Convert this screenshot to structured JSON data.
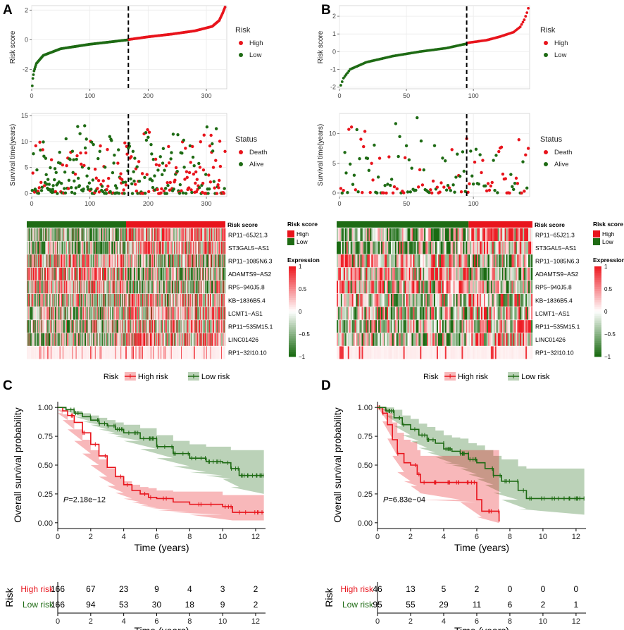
{
  "figure": {
    "panel_letters": [
      "A",
      "B",
      "C",
      "D"
    ],
    "colors": {
      "high": "#e8141c",
      "low": "#1e6b14",
      "white": "#ffffff",
      "grid": "#ebebeb"
    }
  },
  "chart_data": [
    {
      "id": "A_risk",
      "type": "scatter",
      "panel": "A",
      "ylabel": "Risk score",
      "xlabel": "",
      "xlim": [
        0,
        335
      ],
      "ylim": [
        -3.3,
        2.3
      ],
      "xticks": [
        "0",
        "100",
        "200",
        "300"
      ],
      "xtick_values": [
        0,
        100,
        200,
        300
      ],
      "yticks": [
        "-2",
        "0",
        "2"
      ],
      "ytick_values": [
        -2,
        0,
        2
      ],
      "cutoff_x": 166,
      "legend": {
        "title": "Risk",
        "entries": [
          "High",
          "Low"
        ]
      },
      "n_low": 166,
      "n_high": 166,
      "curve_low": [
        [
          1,
          -3.1
        ],
        [
          2,
          -2.6
        ],
        [
          4,
          -2.1
        ],
        [
          8,
          -1.6
        ],
        [
          20,
          -1.05
        ],
        [
          50,
          -0.6
        ],
        [
          100,
          -0.3
        ],
        [
          140,
          -0.12
        ],
        [
          166,
          0.0
        ]
      ],
      "curve_high": [
        [
          167,
          0.02
        ],
        [
          200,
          0.2
        ],
        [
          240,
          0.38
        ],
        [
          280,
          0.6
        ],
        [
          310,
          0.9
        ],
        [
          322,
          1.3
        ],
        [
          328,
          1.8
        ],
        [
          332,
          2.2
        ]
      ]
    },
    {
      "id": "B_risk",
      "type": "scatter",
      "panel": "B",
      "ylabel": "Risk score",
      "xlabel": "",
      "xlim": [
        0,
        142
      ],
      "ylim": [
        -2.1,
        2.6
      ],
      "xticks": [
        "0",
        "50",
        "100"
      ],
      "xtick_values": [
        0,
        50,
        100
      ],
      "yticks": [
        "-2",
        "-1",
        "0",
        "1",
        "2"
      ],
      "ytick_values": [
        -2,
        -1,
        0,
        1,
        2
      ],
      "cutoff_x": 95,
      "legend": {
        "title": "Risk",
        "entries": [
          "High",
          "Low"
        ]
      },
      "n_low": 95,
      "n_high": 46,
      "curve_low": [
        [
          1,
          -1.9
        ],
        [
          3,
          -1.5
        ],
        [
          8,
          -1.0
        ],
        [
          20,
          -0.6
        ],
        [
          40,
          -0.25
        ],
        [
          60,
          0.0
        ],
        [
          80,
          0.2
        ],
        [
          95,
          0.45
        ]
      ],
      "curve_high": [
        [
          96,
          0.5
        ],
        [
          110,
          0.65
        ],
        [
          120,
          0.85
        ],
        [
          130,
          1.1
        ],
        [
          135,
          1.4
        ],
        [
          138,
          1.8
        ],
        [
          140,
          2.2
        ],
        [
          141,
          2.45
        ]
      ]
    },
    {
      "id": "A_status",
      "type": "scatter",
      "panel": "A",
      "ylabel": "Survival time(years)",
      "xlim": [
        0,
        335
      ],
      "ylim": [
        -0.6,
        15.4
      ],
      "xticks": [
        "0",
        "100",
        "200",
        "300"
      ],
      "xtick_values": [
        0,
        100,
        200,
        300
      ],
      "yticks": [
        "0",
        "5",
        "10",
        "15"
      ],
      "ytick_values": [
        0,
        5,
        10,
        15
      ],
      "cutoff_x": 166,
      "n": 332,
      "n_death_approx": 150,
      "max_time": 14.5,
      "legend": {
        "title": "Status",
        "entries": [
          "Death",
          "Alive"
        ]
      }
    },
    {
      "id": "B_status",
      "type": "scatter",
      "panel": "B",
      "ylabel": "Survival time(years)",
      "xlim": [
        0,
        142
      ],
      "ylim": [
        -0.6,
        13.4
      ],
      "xticks": [
        "0",
        "50",
        "100"
      ],
      "xtick_values": [
        0,
        50,
        100
      ],
      "yticks": [
        "0",
        "5",
        "10"
      ],
      "ytick_values": [
        0,
        5,
        10
      ],
      "cutoff_x": 95,
      "n": 141,
      "n_death_approx": 50,
      "max_time": 13,
      "legend": {
        "title": "Status",
        "entries": [
          "Death",
          "Alive"
        ]
      }
    },
    {
      "id": "A_heatmap",
      "type": "heatmap",
      "panel": "A",
      "annotation_label": "Risk score",
      "n_low": 166,
      "n_high": 166,
      "genes": [
        "RP11−65J21.3",
        "ST3GAL5−AS1",
        "RP11−1085N6.3",
        "ADAMTS9−AS2",
        "RP5−940J5.8",
        "KB−1836B5.4",
        "LCMT1−AS1",
        "RP11−535M15.1",
        "LINC01426",
        "RP1−32I10.10"
      ],
      "legend_risk": {
        "title": "Risk score",
        "entries": [
          "High",
          "Low"
        ]
      },
      "legend_expr": {
        "title": "Expression",
        "ticks": [
          "1",
          "0.5",
          "0",
          "−0.5",
          "−1"
        ],
        "tick_values": [
          1,
          0.5,
          0,
          -0.5,
          -1
        ]
      }
    },
    {
      "id": "B_heatmap",
      "type": "heatmap",
      "panel": "B",
      "annotation_label": "Risk score",
      "n_low": 95,
      "n_high": 46,
      "genes": [
        "RP11−65J21.3",
        "ST3GAL5−AS1",
        "RP11−1085N6.3",
        "ADAMTS9−AS2",
        "RP5−940J5.8",
        "KB−1836B5.4",
        "LCMT1−AS1",
        "RP11−535M15.1",
        "LINC01426",
        "RP1−32I10.10"
      ],
      "legend_risk": {
        "title": "Risk score",
        "entries": [
          "High",
          "Low"
        ]
      },
      "legend_expr": {
        "title": "Expression",
        "ticks": [
          "1",
          "0.5",
          "0",
          "−0.5",
          "−1"
        ],
        "tick_values": [
          1,
          0.5,
          0,
          -0.5,
          -1
        ]
      }
    },
    {
      "id": "C_km",
      "type": "line",
      "panel": "C",
      "title": "",
      "xlabel": "Time (years)",
      "ylabel": "Overall survival probability",
      "xlim": [
        0,
        12.6
      ],
      "ylim": [
        -0.05,
        1.05
      ],
      "xticks": [
        "0",
        "2",
        "4",
        "6",
        "8",
        "10",
        "12"
      ],
      "xtick_values": [
        0,
        2,
        4,
        6,
        8,
        10,
        12
      ],
      "yticks": [
        "0.00",
        "0.25",
        "0.50",
        "0.75",
        "1.00"
      ],
      "ytick_values": [
        0,
        0.25,
        0.5,
        0.75,
        1
      ],
      "legend": {
        "title": "Risk",
        "entries": [
          "High risk",
          "Low risk"
        ]
      },
      "pvalue_label": "P",
      "pvalue_text": "=2.18e−12",
      "series": [
        {
          "name": "High risk",
          "color": "#e8141c",
          "points": [
            [
              0,
              1
            ],
            [
              0.3,
              0.97
            ],
            [
              0.6,
              0.93
            ],
            [
              1.0,
              0.87
            ],
            [
              1.5,
              0.78
            ],
            [
              2.0,
              0.68
            ],
            [
              2.5,
              0.58
            ],
            [
              3.0,
              0.48
            ],
            [
              3.5,
              0.4
            ],
            [
              4.0,
              0.33
            ],
            [
              4.5,
              0.28
            ],
            [
              5.0,
              0.25
            ],
            [
              5.5,
              0.22
            ],
            [
              6.0,
              0.21
            ],
            [
              7.0,
              0.18
            ],
            [
              8.0,
              0.16
            ],
            [
              10.0,
              0.14
            ],
            [
              10.6,
              0.09
            ],
            [
              12.5,
              0.09
            ]
          ],
          "ci_upper": [
            0.98,
            0.94,
            0.89,
            0.81,
            0.72,
            0.63,
            0.55,
            0.47,
            0.41,
            0.36,
            0.33,
            0.31,
            0.3,
            0.28,
            0.27,
            0.27,
            0.24,
            0.24
          ],
          "ci_lower": [
            0.95,
            0.89,
            0.81,
            0.71,
            0.6,
            0.5,
            0.4,
            0.32,
            0.26,
            0.21,
            0.18,
            0.15,
            0.13,
            0.11,
            0.09,
            0.07,
            0.02,
            0.02
          ]
        },
        {
          "name": "Low risk",
          "color": "#1e6b14",
          "points": [
            [
              0,
              1
            ],
            [
              0.5,
              0.98
            ],
            [
              1.0,
              0.95
            ],
            [
              1.5,
              0.92
            ],
            [
              2.0,
              0.89
            ],
            [
              2.5,
              0.86
            ],
            [
              3.0,
              0.84
            ],
            [
              3.5,
              0.81
            ],
            [
              4.0,
              0.78
            ],
            [
              5.0,
              0.73
            ],
            [
              6.0,
              0.66
            ],
            [
              7.0,
              0.6
            ],
            [
              8.0,
              0.56
            ],
            [
              9.0,
              0.53
            ],
            [
              10.0,
              0.52
            ],
            [
              10.5,
              0.47
            ],
            [
              11.0,
              0.41
            ],
            [
              12.5,
              0.41
            ]
          ],
          "ci_upper": [
            1.0,
            0.99,
            0.97,
            0.95,
            0.93,
            0.91,
            0.89,
            0.87,
            0.85,
            0.82,
            0.76,
            0.71,
            0.68,
            0.66,
            0.66,
            0.63,
            0.63,
            0.63
          ],
          "ci_lower": [
            1.0,
            0.97,
            0.92,
            0.88,
            0.85,
            0.81,
            0.78,
            0.75,
            0.71,
            0.64,
            0.56,
            0.49,
            0.44,
            0.41,
            0.38,
            0.31,
            0.25,
            0.25
          ]
        }
      ]
    },
    {
      "id": "D_km",
      "type": "line",
      "panel": "D",
      "title": "",
      "xlabel": "Time (years)",
      "ylabel": "Overall survival probability",
      "xlim": [
        0,
        12.6
      ],
      "ylim": [
        -0.05,
        1.05
      ],
      "xticks": [
        "0",
        "2",
        "4",
        "6",
        "8",
        "10",
        "12"
      ],
      "xtick_values": [
        0,
        2,
        4,
        6,
        8,
        10,
        12
      ],
      "yticks": [
        "0.00",
        "0.25",
        "0.50",
        "0.75",
        "1.00"
      ],
      "ytick_values": [
        0,
        0.25,
        0.5,
        0.75,
        1
      ],
      "legend": {
        "title": "Risk",
        "entries": [
          "High risk",
          "Low risk"
        ]
      },
      "pvalue_label": "P",
      "pvalue_text": "=6.83e−04",
      "series": [
        {
          "name": "High risk",
          "color": "#e8141c",
          "points": [
            [
              0,
              1
            ],
            [
              0.3,
              0.95
            ],
            [
              0.6,
              0.85
            ],
            [
              0.9,
              0.72
            ],
            [
              1.2,
              0.6
            ],
            [
              1.6,
              0.52
            ],
            [
              2.0,
              0.5
            ],
            [
              2.4,
              0.42
            ],
            [
              2.6,
              0.35
            ],
            [
              5.0,
              0.35
            ],
            [
              6.0,
              0.2
            ],
            [
              6.3,
              0.1
            ],
            [
              7.3,
              0.1
            ],
            [
              7.35,
              0.01
            ]
          ],
          "ci_upper": [
            1.0,
            0.99,
            0.95,
            0.87,
            0.78,
            0.72,
            0.7,
            0.63,
            0.58,
            0.63,
            0.63,
            0.63,
            0.63,
            0.63
          ],
          "ci_lower": [
            1.0,
            0.88,
            0.73,
            0.58,
            0.44,
            0.36,
            0.32,
            0.26,
            0.2,
            0.18,
            0.05,
            0.0,
            0.0,
            0.0
          ]
        },
        {
          "name": "Low risk",
          "color": "#1e6b14",
          "points": [
            [
              0,
              1
            ],
            [
              0.5,
              0.97
            ],
            [
              1.0,
              0.91
            ],
            [
              1.5,
              0.85
            ],
            [
              2.0,
              0.81
            ],
            [
              2.5,
              0.76
            ],
            [
              3.0,
              0.72
            ],
            [
              3.5,
              0.69
            ],
            [
              4.0,
              0.64
            ],
            [
              4.5,
              0.62
            ],
            [
              5.0,
              0.6
            ],
            [
              5.5,
              0.55
            ],
            [
              6.0,
              0.52
            ],
            [
              6.5,
              0.47
            ],
            [
              7.0,
              0.41
            ],
            [
              7.5,
              0.36
            ],
            [
              8.5,
              0.28
            ],
            [
              9.0,
              0.21
            ],
            [
              12.5,
              0.21
            ]
          ],
          "ci_upper": [
            1.0,
            1.0,
            0.98,
            0.93,
            0.9,
            0.86,
            0.83,
            0.8,
            0.76,
            0.74,
            0.73,
            0.69,
            0.67,
            0.63,
            0.58,
            0.55,
            0.49,
            0.47,
            0.47
          ],
          "ci_lower": [
            1.0,
            0.93,
            0.84,
            0.76,
            0.71,
            0.65,
            0.61,
            0.57,
            0.52,
            0.5,
            0.47,
            0.42,
            0.38,
            0.33,
            0.26,
            0.2,
            0.12,
            0.07,
            0.07
          ]
        }
      ]
    },
    {
      "id": "C_table",
      "type": "table",
      "panel": "C",
      "ylabel": "Risk",
      "xlabel": "Time (years)",
      "xticks": [
        "0",
        "2",
        "4",
        "6",
        "8",
        "10",
        "12"
      ],
      "rows": [
        {
          "name": "High risk",
          "color": "#e8141c",
          "values": [
            "166",
            "67",
            "23",
            "9",
            "4",
            "3",
            "2"
          ]
        },
        {
          "name": "Low risk",
          "color": "#1e6b14",
          "values": [
            "166",
            "94",
            "53",
            "30",
            "18",
            "9",
            "2"
          ]
        }
      ]
    },
    {
      "id": "D_table",
      "type": "table",
      "panel": "D",
      "ylabel": "Risk",
      "xlabel": "Time (years)",
      "xticks": [
        "0",
        "2",
        "4",
        "6",
        "8",
        "10",
        "12"
      ],
      "rows": [
        {
          "name": "High risk",
          "color": "#e8141c",
          "values": [
            "46",
            "13",
            "5",
            "2",
            "0",
            "0",
            "0"
          ]
        },
        {
          "name": "Low risk",
          "color": "#1e6b14",
          "values": [
            "95",
            "55",
            "29",
            "11",
            "6",
            "2",
            "1"
          ]
        }
      ]
    }
  ]
}
